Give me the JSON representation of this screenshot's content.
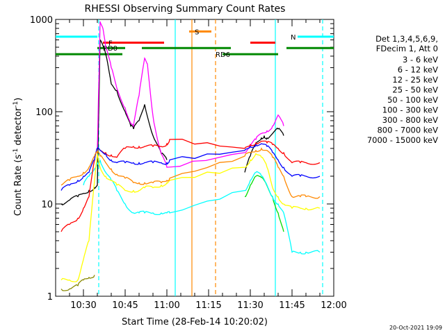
{
  "chart_data": {
    "type": "line",
    "title": "RHESSI Observing Summary Count Rates",
    "xlabel": "Start Time (28-Feb-14 10:20:02)",
    "ylabel": "Count Rate (s",
    "ylabel_sup": "-1",
    "ylabel_tail": " detector",
    "ylabel_end": ")",
    "yscale": "log",
    "ylim": [
      1,
      1000
    ],
    "xlim_minutes": [
      0,
      100
    ],
    "x_tick_labels": [
      {
        "min": 10,
        "label": "10:30"
      },
      {
        "min": 25,
        "label": "10:45"
      },
      {
        "min": 40,
        "label": "11:00"
      },
      {
        "min": 55,
        "label": "11:15"
      },
      {
        "min": 70,
        "label": "11:30"
      },
      {
        "min": 85,
        "label": "11:45"
      },
      {
        "min": 100,
        "label": "12:00"
      }
    ],
    "y_tick_labels": [
      {
        "v": 1,
        "label": "1"
      },
      {
        "v": 10,
        "label": "10"
      },
      {
        "v": 100,
        "label": "100"
      },
      {
        "v": 1000,
        "label": "1000"
      }
    ],
    "legend_header": [
      "Det 1,3,4,5,6,9,",
      "FDecim 1, Att 0"
    ],
    "series": [
      {
        "name": "3 - 6 keV",
        "color": "#000000",
        "x": [
          2,
          5,
          8,
          10,
          12,
          14,
          15,
          16,
          18,
          20,
          22,
          25,
          27,
          28,
          30,
          32,
          35,
          38,
          40,
          45,
          48,
          55,
          60,
          65,
          68,
          70,
          72,
          74,
          75,
          76,
          78,
          80,
          82,
          85,
          90,
          95
        ],
        "y": [
          10,
          11,
          12,
          13,
          14,
          15,
          16,
          600,
          420,
          200,
          170,
          100,
          70,
          65,
          80,
          120,
          55,
          35,
          30,
          null,
          null,
          null,
          null,
          null,
          22,
          33,
          45,
          52,
          55,
          52,
          58,
          65,
          55,
          null,
          null,
          null
        ]
      },
      {
        "name": "6 - 12 keV",
        "color": "#ff00ff",
        "x": [
          15,
          16,
          17,
          18,
          20,
          22,
          25,
          27,
          28,
          30,
          32,
          33,
          35,
          37,
          38,
          40,
          68,
          70,
          72,
          74,
          76,
          78,
          80,
          82,
          85,
          90,
          95
        ],
        "y": [
          40,
          950,
          800,
          500,
          300,
          180,
          110,
          75,
          70,
          150,
          380,
          330,
          90,
          45,
          35,
          25,
          36,
          42,
          50,
          58,
          62,
          70,
          92,
          70,
          null,
          null,
          null
        ]
      },
      {
        "name": "12 - 25 keV",
        "color": "#00dd00",
        "x": [
          2,
          5,
          8,
          10,
          12,
          14,
          15,
          16,
          18,
          20,
          22,
          25,
          28,
          30,
          32,
          35,
          38,
          40,
          41,
          45,
          50,
          55,
          60,
          65,
          68,
          70,
          72,
          75,
          78,
          80,
          82,
          85,
          88,
          90,
          95
        ],
        "y": [
          null,
          null,
          null,
          null,
          null,
          null,
          null,
          null,
          null,
          null,
          null,
          null,
          null,
          null,
          null,
          null,
          null,
          null,
          null,
          null,
          null,
          null,
          null,
          null,
          12,
          16,
          20,
          18,
          12,
          8,
          5,
          null,
          null,
          null,
          null
        ]
      },
      {
        "name": "25 - 50 keV",
        "color": "#00ffff",
        "x": [
          10,
          12,
          14,
          15,
          16,
          18,
          20,
          22,
          25,
          28,
          30,
          32,
          35,
          38,
          40,
          41,
          68,
          70,
          72,
          74,
          76,
          78,
          80,
          82,
          85,
          88,
          90,
          95
        ],
        "y": [
          16,
          20,
          24,
          28,
          30,
          22,
          18,
          14,
          10,
          8,
          8,
          8,
          8,
          8,
          8,
          8,
          14,
          18,
          22,
          20,
          16,
          12,
          10,
          8,
          3,
          3,
          3,
          3
        ]
      },
      {
        "name": "50 - 100 keV",
        "color": "#ffff00",
        "x": [
          2,
          5,
          8,
          10,
          12,
          14,
          15,
          16,
          18,
          20,
          22,
          25,
          28,
          30,
          32,
          35,
          38,
          40,
          41,
          68,
          70,
          72,
          74,
          76,
          78,
          80,
          82,
          85,
          88,
          90,
          95
        ],
        "y": [
          1.5,
          1.5,
          1.5,
          2.5,
          4,
          18,
          35,
          25,
          20,
          18,
          16,
          14,
          14,
          14,
          15,
          15,
          16,
          17,
          18,
          25,
          30,
          35,
          32,
          25,
          15,
          12,
          10,
          9,
          9,
          9,
          9
        ]
      },
      {
        "name": "100 - 300 keV",
        "color": "#ff0000",
        "x": [
          2,
          5,
          8,
          10,
          12,
          14,
          15,
          16,
          18,
          20,
          22,
          25,
          28,
          30,
          32,
          35,
          38,
          40,
          41,
          68,
          70,
          72,
          74,
          76,
          78,
          80,
          82,
          85,
          88,
          90,
          95
        ],
        "y": [
          5,
          6,
          7,
          9,
          12,
          30,
          40,
          38,
          36,
          34,
          32,
          40,
          42,
          42,
          42,
          42,
          42,
          45,
          50,
          40,
          44,
          46,
          48,
          46,
          44,
          40,
          36,
          28,
          28,
          28,
          28
        ]
      },
      {
        "name": "300 - 800 keV",
        "color": "#0000ff",
        "x": [
          2,
          5,
          8,
          10,
          12,
          14,
          15,
          16,
          18,
          20,
          22,
          25,
          28,
          30,
          32,
          35,
          38,
          40,
          41,
          68,
          70,
          72,
          74,
          76,
          78,
          80,
          82,
          85,
          88,
          90,
          95
        ],
        "y": [
          14,
          16,
          18,
          20,
          22,
          30,
          40,
          38,
          35,
          30,
          28,
          28,
          28,
          28,
          28,
          28,
          28,
          28,
          30,
          38,
          42,
          44,
          45,
          42,
          36,
          30,
          25,
          20,
          20,
          20,
          20
        ]
      },
      {
        "name": "800 - 7000 keV",
        "color": "#ff8800",
        "x": [
          2,
          5,
          8,
          10,
          12,
          14,
          15,
          16,
          18,
          20,
          22,
          25,
          28,
          30,
          32,
          35,
          38,
          40,
          41,
          68,
          70,
          72,
          74,
          76,
          78,
          80,
          82,
          85,
          88,
          90,
          95
        ],
        "y": [
          16,
          18,
          20,
          22,
          25,
          33,
          36,
          33,
          28,
          24,
          21,
          19,
          17,
          17,
          17,
          17,
          17,
          18,
          19,
          33,
          36,
          38,
          40,
          38,
          32,
          25,
          20,
          12,
          12,
          12,
          12
        ]
      },
      {
        "name": "7000 - 15000 keV",
        "color": "#888800",
        "x": [
          2,
          5,
          8,
          10,
          12,
          14
        ],
        "y": [
          1.2,
          1.2,
          1.3,
          1.5,
          1.6,
          1.7
        ]
      }
    ],
    "annotations": {
      "bars": [
        {
          "label": "N",
          "color": "#00ffff",
          "y": 650,
          "segments": [
            [
              0,
              15
            ],
            [
              87,
              100
            ]
          ]
        },
        {
          "label": "F",
          "color": "#ff0000",
          "y": 560,
          "segments": [
            [
              17,
              39
            ],
            [
              70,
              79
            ]
          ]
        },
        {
          "label": "RD0",
          "color": "#008800",
          "y": 490,
          "segments": [
            [
              15,
              25
            ],
            [
              31,
              63
            ],
            [
              83,
              100
            ]
          ]
        },
        {
          "label": "RD6",
          "color": "#008800",
          "y": 420,
          "segments": [
            [
              0,
              24
            ],
            [
              60,
              80
            ]
          ]
        },
        {
          "label": "S",
          "color": "#ff8800",
          "y": 740,
          "segments": [
            [
              48,
              56
            ]
          ]
        }
      ],
      "vlines": [
        {
          "x": 15.5,
          "color": "#00ffff",
          "dash": true
        },
        {
          "x": 43,
          "color": "#00ffff",
          "dash": false
        },
        {
          "x": 49,
          "color": "#ff8800",
          "dash": false
        },
        {
          "x": 57.5,
          "color": "#ff8800",
          "dash": true
        },
        {
          "x": 79,
          "color": "#00ffff",
          "dash": false
        },
        {
          "x": 96,
          "color": "#00ffff",
          "dash": true
        }
      ]
    },
    "timestamp": "20-Oct-2021 19:09"
  }
}
